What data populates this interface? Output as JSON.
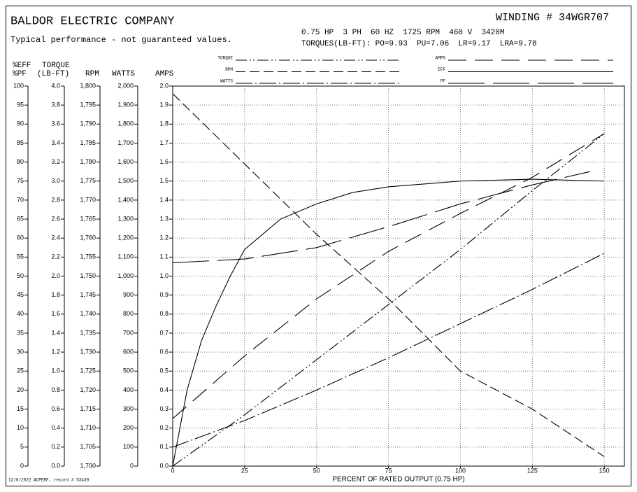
{
  "chart_data": {
    "type": "line",
    "title": "BALDOR ELECTRIC COMPANY",
    "subtitle": "Typical performance - not guaranteed values.",
    "winding": "WINDING # 34WGR707",
    "specs": "0.75 HP  3 PH  60 HZ  1725 RPM  460 V  3420M",
    "torques": "TORQUES(LB-FT): PO=9.93  PU=7.06  LR=9.17  LRA=9.78",
    "footer": "12/6/2022 ACPERF, record # 53439",
    "xlabel": "PERCENT OF RATED OUTPUT (0.75 HP)",
    "xlim": [
      0,
      157
    ],
    "xticks": [
      0,
      25,
      50,
      75,
      100,
      125,
      150
    ],
    "grid": true,
    "ylabel": "AMPS",
    "ylim": [
      0,
      2
    ],
    "yticks": [
      {
        "value": 0,
        "label": "0.0"
      },
      0.1,
      0.2,
      0.3,
      0.4,
      0.5,
      0.6,
      0.7,
      0.8,
      0.9,
      {
        "value": 1,
        "label": "1.0"
      },
      1.1,
      1.2,
      1.3,
      1.4,
      1.5,
      1.6,
      1.7,
      1.8,
      1.9,
      {
        "value": 2,
        "label": "2.0"
      }
    ],
    "y2label": [
      "%EFF",
      "%PF"
    ],
    "y2lim": [
      0,
      100
    ],
    "y2ticks": [
      0,
      5,
      10,
      15,
      20,
      25,
      30,
      35,
      40,
      45,
      50,
      55,
      60,
      65,
      70,
      75,
      80,
      85,
      90,
      95,
      100
    ],
    "y3label": [
      "TORQUE",
      "(LB-FT)"
    ],
    "y3lim": [
      0,
      4
    ],
    "y3ticks": [
      {
        "value": 0,
        "label": "0.0"
      },
      0.2,
      0.4,
      0.6,
      0.8,
      {
        "value": 1,
        "label": "1.0"
      },
      1.2,
      1.4,
      1.6,
      1.8,
      {
        "value": 2,
        "label": "2.0"
      },
      2.2,
      2.4,
      2.6,
      2.8,
      {
        "value": 3,
        "label": "3.0"
      },
      3.2,
      3.4,
      3.6,
      3.8,
      {
        "value": 4,
        "label": "4.0"
      }
    ],
    "y4label": "RPM",
    "y4lim": [
      1700,
      1800
    ],
    "y4ticks": [
      {
        "value": 1700,
        "label": "1,700"
      },
      {
        "value": 1705,
        "label": "1,705"
      },
      {
        "value": 1710,
        "label": "1,710"
      },
      {
        "value": 1715,
        "label": "1,715"
      },
      {
        "value": 1720,
        "label": "1,720"
      },
      {
        "value": 1725,
        "label": "1,725"
      },
      {
        "value": 1730,
        "label": "1,730"
      },
      {
        "value": 1735,
        "label": "1,735"
      },
      {
        "value": 1740,
        "label": "1,740"
      },
      {
        "value": 1745,
        "label": "1,745"
      },
      {
        "value": 1750,
        "label": "1,750"
      },
      {
        "value": 1755,
        "label": "1,755"
      },
      {
        "value": 1760,
        "label": "1,760"
      },
      {
        "value": 1765,
        "label": "1,765"
      },
      {
        "value": 1770,
        "label": "1,770"
      },
      {
        "value": 1775,
        "label": "1,775"
      },
      {
        "value": 1780,
        "label": "1,780"
      },
      {
        "value": 1785,
        "label": "1,785"
      },
      {
        "value": 1790,
        "label": "1,790"
      },
      {
        "value": 1795,
        "label": "1,795"
      },
      {
        "value": 1800,
        "label": "1,800"
      }
    ],
    "y5label": "WATTS",
    "y5lim": [
      0,
      2000
    ],
    "y5ticks": [
      0,
      100,
      200,
      300,
      400,
      500,
      600,
      700,
      800,
      900,
      {
        "value": 1000,
        "label": "1,000"
      },
      {
        "value": 1100,
        "label": "1,100"
      },
      {
        "value": 1200,
        "label": "1,200"
      },
      {
        "value": 1300,
        "label": "1,300"
      },
      {
        "value": 1400,
        "label": "1,400"
      },
      {
        "value": 1500,
        "label": "1,500"
      },
      {
        "value": 1600,
        "label": "1,600"
      },
      {
        "value": 1700,
        "label": "1,700"
      },
      {
        "value": 1800,
        "label": "1,800"
      },
      {
        "value": 1900,
        "label": "1,900"
      },
      {
        "value": 2000,
        "label": "2,000"
      }
    ],
    "series": [
      {
        "name": "TORQUE",
        "color": "#000000",
        "axis": "y3",
        "dash": "16,4,2,3,2,4",
        "x": [
          0,
          25,
          50,
          75,
          100,
          125,
          150
        ],
        "values": [
          0,
          0.54,
          1.12,
          1.7,
          2.28,
          2.9,
          3.5
        ]
      },
      {
        "name": "RPM",
        "color": "#000000",
        "axis": "y4",
        "dash": "14,6",
        "x": [
          0,
          25,
          50,
          75,
          100,
          125,
          150
        ],
        "values": [
          1798,
          1779.5,
          1761,
          1744,
          1725,
          1715,
          1702.5
        ]
      },
      {
        "name": "WATTS",
        "color": "#000000",
        "axis": "y5",
        "dash": "24,4,2,4",
        "x": [
          0,
          25,
          50,
          75,
          100,
          125,
          150
        ],
        "values": [
          100,
          240,
          400,
          570,
          750,
          930,
          1120
        ]
      },
      {
        "name": "AMPS",
        "color": "#000000",
        "dash": "26,12",
        "x": [
          0,
          25,
          50,
          75,
          100,
          125,
          150
        ],
        "values": [
          0.25,
          0.58,
          0.88,
          1.13,
          1.33,
          1.52,
          1.75
        ]
      },
      {
        "name": "EFF",
        "color": "#000000",
        "axis": "y2",
        "x": [
          0,
          5,
          10,
          15,
          20,
          25,
          37.5,
          50,
          62.5,
          75,
          100,
          125,
          150
        ],
        "values": [
          0,
          20,
          33,
          42,
          50,
          57,
          65,
          69,
          72,
          73.5,
          75,
          75.5,
          75
        ]
      },
      {
        "name": "PF",
        "color": "#000000",
        "axis": "y2",
        "dash": "52,12",
        "x": [
          0,
          25,
          50,
          75,
          100,
          125,
          145
        ],
        "values": [
          53.5,
          54.5,
          57.5,
          63,
          69,
          74,
          77.5
        ]
      }
    ]
  }
}
